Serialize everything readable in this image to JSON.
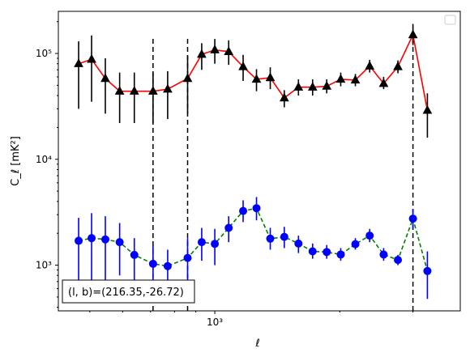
{
  "chart_data": {
    "type": "scatter",
    "xscale": "log",
    "yscale": "log",
    "xlabel": "ℓ",
    "ylabel": "C_ℓ [mK²]",
    "xlim": [
      420,
      3900
    ],
    "ylim": [
      370,
      250000
    ],
    "x_tick_labels": [
      {
        "value": 1000,
        "label": "10³"
      }
    ],
    "y_tick_labels": [
      {
        "value": 1000,
        "label": "10³"
      },
      {
        "value": 10000,
        "label": "10⁴"
      },
      {
        "value": 100000,
        "label": "10⁵"
      }
    ],
    "vlines": [
      710,
      860,
      3000
    ],
    "annotation": "(l, b)=(216.35,-26.72)",
    "legend": "upper right (empty)",
    "series": [
      {
        "color": "#000000",
        "line_color": "#ff0000",
        "line_style": "solid",
        "marker": "triangle",
        "points": [
          {
            "x": 470,
            "y": 80000,
            "lo": 30000,
            "hi": 130000
          },
          {
            "x": 505,
            "y": 88000,
            "lo": 35000,
            "hi": 148000
          },
          {
            "x": 545,
            "y": 58000,
            "lo": 27000,
            "hi": 90000
          },
          {
            "x": 590,
            "y": 44000,
            "lo": 22000,
            "hi": 66000
          },
          {
            "x": 640,
            "y": 44000,
            "lo": 22000,
            "hi": 66000
          },
          {
            "x": 710,
            "y": 44000,
            "lo": 22000,
            "hi": 66000
          },
          {
            "x": 770,
            "y": 46000,
            "lo": 24000,
            "hi": 68000
          },
          {
            "x": 860,
            "y": 58000,
            "lo": 27000,
            "hi": 95000
          },
          {
            "x": 930,
            "y": 98000,
            "lo": 70000,
            "hi": 125000
          },
          {
            "x": 1000,
            "y": 108000,
            "lo": 80000,
            "hi": 137000
          },
          {
            "x": 1080,
            "y": 104000,
            "lo": 78000,
            "hi": 133000
          },
          {
            "x": 1170,
            "y": 75000,
            "lo": 55000,
            "hi": 97000
          },
          {
            "x": 1260,
            "y": 57000,
            "lo": 44000,
            "hi": 71000
          },
          {
            "x": 1360,
            "y": 59000,
            "lo": 46000,
            "hi": 74000
          },
          {
            "x": 1470,
            "y": 38000,
            "lo": 31000,
            "hi": 45000
          },
          {
            "x": 1590,
            "y": 48000,
            "lo": 40000,
            "hi": 57000
          },
          {
            "x": 1720,
            "y": 48000,
            "lo": 40000,
            "hi": 57000
          },
          {
            "x": 1860,
            "y": 49000,
            "lo": 42000,
            "hi": 57000
          },
          {
            "x": 2010,
            "y": 57000,
            "lo": 49000,
            "hi": 66000
          },
          {
            "x": 2180,
            "y": 56000,
            "lo": 49000,
            "hi": 64000
          },
          {
            "x": 2360,
            "y": 76000,
            "lo": 66000,
            "hi": 87000
          },
          {
            "x": 2550,
            "y": 52000,
            "lo": 46000,
            "hi": 60000
          },
          {
            "x": 2760,
            "y": 75000,
            "lo": 65000,
            "hi": 86000
          },
          {
            "x": 3000,
            "y": 150000,
            "lo": 120000,
            "hi": 190000
          },
          {
            "x": 3250,
            "y": 29000,
            "lo": 16000,
            "hi": 42000
          }
        ]
      },
      {
        "color": "#0000ff",
        "line_color": "#008000",
        "line_style": "dashed",
        "marker": "circle",
        "points": [
          {
            "x": 470,
            "y": 1700,
            "lo": 500,
            "hi": 2800
          },
          {
            "x": 505,
            "y": 1800,
            "lo": 600,
            "hi": 3100
          },
          {
            "x": 545,
            "y": 1750,
            "lo": 600,
            "hi": 2900
          },
          {
            "x": 590,
            "y": 1650,
            "lo": 800,
            "hi": 2500
          },
          {
            "x": 640,
            "y": 1250,
            "lo": 700,
            "hi": 1800
          },
          {
            "x": 710,
            "y": 1030,
            "lo": 500,
            "hi": 1550
          },
          {
            "x": 770,
            "y": 980,
            "lo": 600,
            "hi": 1400
          },
          {
            "x": 860,
            "y": 1170,
            "lo": 500,
            "hi": 1800
          },
          {
            "x": 930,
            "y": 1650,
            "lo": 1100,
            "hi": 2250
          },
          {
            "x": 1000,
            "y": 1590,
            "lo": 1000,
            "hi": 2200
          },
          {
            "x": 1080,
            "y": 2250,
            "lo": 1650,
            "hi": 2900
          },
          {
            "x": 1170,
            "y": 3250,
            "lo": 2550,
            "hi": 4100
          },
          {
            "x": 1260,
            "y": 3450,
            "lo": 2650,
            "hi": 4400
          },
          {
            "x": 1360,
            "y": 1780,
            "lo": 1400,
            "hi": 2250
          },
          {
            "x": 1470,
            "y": 1850,
            "lo": 1450,
            "hi": 2300
          },
          {
            "x": 1590,
            "y": 1600,
            "lo": 1300,
            "hi": 1900
          },
          {
            "x": 1720,
            "y": 1350,
            "lo": 1150,
            "hi": 1600
          },
          {
            "x": 1860,
            "y": 1330,
            "lo": 1150,
            "hi": 1550
          },
          {
            "x": 2010,
            "y": 1260,
            "lo": 1100,
            "hi": 1450
          },
          {
            "x": 2180,
            "y": 1580,
            "lo": 1400,
            "hi": 1800
          },
          {
            "x": 2360,
            "y": 1900,
            "lo": 1650,
            "hi": 2200
          },
          {
            "x": 2550,
            "y": 1260,
            "lo": 1100,
            "hi": 1450
          },
          {
            "x": 2760,
            "y": 1120,
            "lo": 1000,
            "hi": 1250
          },
          {
            "x": 3000,
            "y": 2750,
            "lo": 2200,
            "hi": 3400
          },
          {
            "x": 3250,
            "y": 880,
            "lo": 480,
            "hi": 1350
          }
        ]
      }
    ]
  }
}
